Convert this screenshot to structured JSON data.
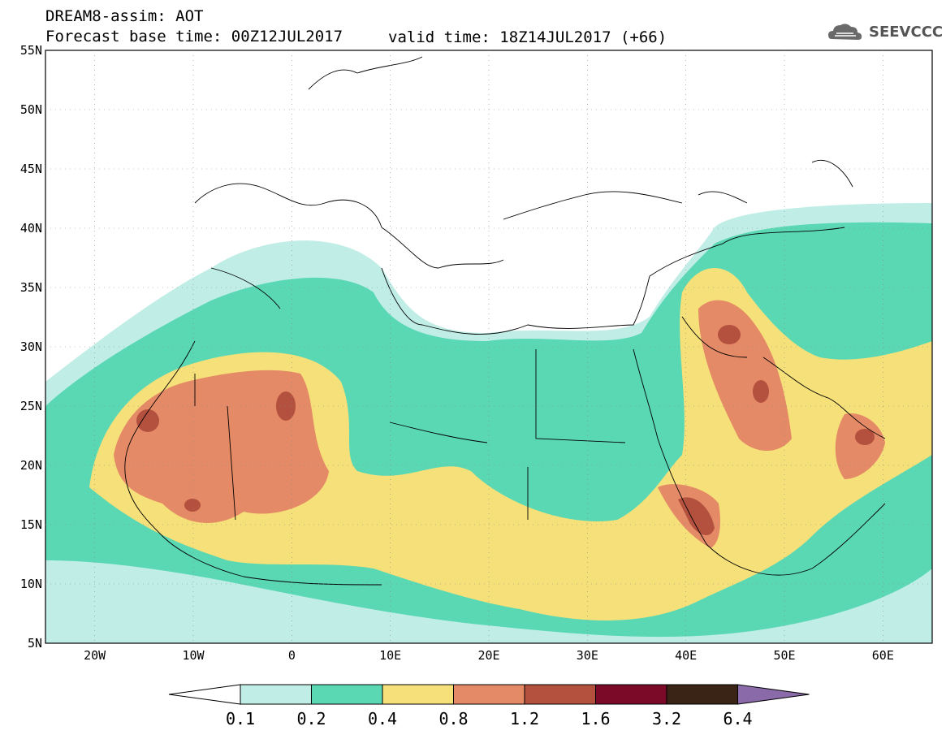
{
  "header": {
    "title": "DREAM8-assim: AOT",
    "base_time": "Forecast base time: 00Z12JUL2017",
    "valid_time": "valid time: 18Z14JUL2017 (+66)",
    "logo_text": "SEEVCCC"
  },
  "map": {
    "lon_range": [
      -25,
      65
    ],
    "lat_range": [
      5,
      55
    ],
    "lat_labels": [
      "55N",
      "50N",
      "45N",
      "40N",
      "35N",
      "30N",
      "25N",
      "20N",
      "15N",
      "10N",
      "5N"
    ],
    "lon_labels": [
      "20W",
      "10W",
      "0",
      "10E",
      "20E",
      "30E",
      "40E",
      "50E",
      "60E"
    ]
  },
  "colorbar": {
    "levels": [
      "0.1",
      "0.2",
      "0.4",
      "0.8",
      "1.2",
      "1.6",
      "3.2",
      "6.4"
    ],
    "colors": [
      "#ffffff",
      "#c0eee6",
      "#5ad8b4",
      "#f5e07a",
      "#e58a66",
      "#b4503e",
      "#7a0a28",
      "#3a2416",
      "#8a6aa8"
    ]
  }
}
